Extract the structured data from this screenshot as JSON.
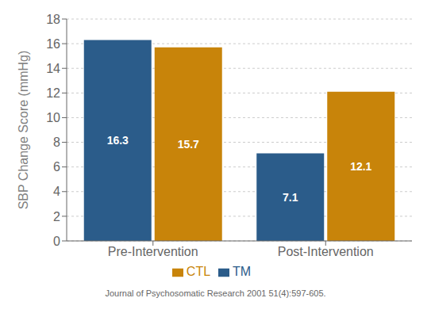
{
  "chart_data": {
    "type": "bar",
    "categories": [
      "Pre-Intervention",
      "Post-Intervention"
    ],
    "series": [
      {
        "name": "TM",
        "color": "#2B5C8A",
        "values": [
          16.3,
          7.1
        ]
      },
      {
        "name": "CTL",
        "color": "#C8840A",
        "values": [
          15.7,
          12.1
        ]
      }
    ],
    "y_label": "SBP Change Score (mmHg)",
    "ylim": [
      0,
      18
    ],
    "yticks": [
      0,
      2,
      4,
      6,
      8,
      10,
      12,
      14,
      16,
      18
    ],
    "grid": true,
    "legend": "bottom",
    "data_labels": true,
    "annotation": "Journal of Psychosomatic Research 2001 51(4):597-605."
  }
}
